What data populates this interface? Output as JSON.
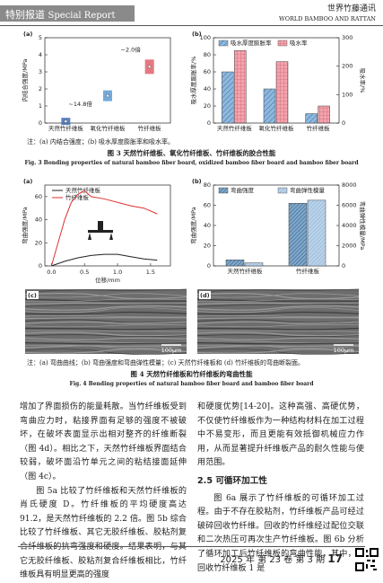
{
  "header": {
    "section": "特别报道",
    "section_en": "Special Report",
    "journal": "世界竹藤通讯",
    "journal_en": "WORLD BAMBOO AND RATTAN"
  },
  "fig3": {
    "a": {
      "label": "(a)",
      "type": "dot",
      "ylabel": "内结合强度/MPa",
      "categories": [
        "天然竹纤维板",
        "氧化竹纤维板",
        "竹纤维板"
      ],
      "values": [
        0.1,
        1.6,
        3.3
      ],
      "colors": [
        "#3f6fb5",
        "#5b9bd5",
        "#e0606a"
      ],
      "ylim": [
        0,
        5
      ],
      "yticks": [
        0,
        1,
        2,
        3,
        4,
        5
      ],
      "annotations": [
        "~14.8倍",
        "~2.0倍"
      ]
    },
    "b": {
      "label": "(b)",
      "type": "bar",
      "ylabel": "吸水厚度膨胀率/%",
      "y2label": "吸水率/%",
      "categories": [
        "天然竹纤维板",
        "氧化竹纤维板",
        "竹纤维板"
      ],
      "series": [
        {
          "name": "吸水厚度膨胀率",
          "color": "#8fb8de",
          "values": [
            60,
            40,
            11
          ]
        },
        {
          "name": "吸水率",
          "color": "#f3a3ad",
          "axis": "y2",
          "values": [
            255,
            216,
            60
          ]
        }
      ],
      "ylim": [
        0,
        100
      ],
      "yticks": [
        0,
        20,
        40,
        60,
        80,
        100
      ],
      "y2lim": [
        0,
        300
      ],
      "y2ticks": [
        0,
        100,
        200,
        300
      ]
    },
    "note": "注：(a) 内结合强度；(b) 吸水厚度膨胀率和吸水率。",
    "title": "图 3   天然竹纤维板、氧化竹纤维板、竹纤维板的胶合性能",
    "title_en": "Fig. 3   Bonding properties of natural bamboo fiber board, oxidized bamboo fiber board and bamboo fiber board"
  },
  "fig4": {
    "a": {
      "label": "(a)",
      "type": "line",
      "xlabel": "位移/mm",
      "ylabel": "弯曲强度/MPa",
      "series": [
        {
          "name": "天然竹纤维板",
          "color": "#222222",
          "x": [
            0,
            0.2,
            0.4,
            0.6,
            0.8,
            1.0,
            1.2,
            1.4,
            1.6
          ],
          "values": [
            0,
            4,
            7,
            9,
            10,
            10,
            8,
            6,
            5
          ]
        },
        {
          "name": "竹纤维板",
          "color": "#e03030",
          "x": [
            0,
            0.1,
            0.2,
            0.3,
            0.4,
            0.5,
            0.6,
            0.8,
            1.0,
            1.2,
            1.4,
            1.6
          ],
          "values": [
            0,
            20,
            40,
            55,
            62,
            65,
            60,
            58,
            55,
            52,
            50,
            45
          ]
        }
      ],
      "xlim": [
        -0.1,
        1.8
      ],
      "xticks": [
        {
          "value": 0,
          "label": "0.0"
        },
        0.5,
        {
          "value": 1,
          "label": "1.0"
        },
        1.5
      ],
      "ylim": [
        0,
        70
      ],
      "yticks": [
        0,
        20,
        40,
        60
      ]
    },
    "b": {
      "label": "(b)",
      "type": "bar",
      "ylabel": "弯曲强度/MPa",
      "y2label": "弯曲弹性模量/MPa",
      "categories": [
        "天然竹纤维板",
        "竹纤维板"
      ],
      "series": [
        {
          "name": "弯曲强度",
          "color": "#7fa7c9",
          "values": [
            6,
            62
          ]
        },
        {
          "name": "弯曲弹性模量",
          "color": "#b9d3ea",
          "axis": "y2",
          "values": [
            300,
            6500
          ]
        }
      ],
      "ylim": [
        0,
        80
      ],
      "yticks": [
        0,
        20,
        40,
        60,
        80
      ],
      "y2lim": [
        0,
        8000
      ],
      "y2ticks": [
        0,
        2000,
        4000,
        6000,
        8000
      ]
    },
    "c": {
      "label": "(c)",
      "scale": "100μm"
    },
    "d": {
      "label": "(d)",
      "scale": "100μm"
    },
    "note": "注：(a) 弯曲曲线；(b) 弯曲强度和弯曲弹性模量；(c) 天然竹纤维板和 (d) 竹纤维板的弯曲断裂面。",
    "title": "图 4   天然竹纤维板和竹纤维板的弯曲性能",
    "title_en": "Fig. 4   Bending properties of natural bamboo fiber board and bamboo fiber board"
  },
  "body": {
    "left": [
      "增加了界面损伤的能量耗散。当竹纤维板受到弯曲应力时，粘接界面有足够的强度不被破坏，在破坏表面显示出相对整齐的纤维断裂（图 4d）。相比之下，天然竹纤维板界面结合较弱，破坏面沿竹单元之间的粘结接面延伸（图 4c）。",
      "图 5a 比较了竹纤维板和天然竹纤维板的肖氏硬度 D。竹纤维板的平均硬度高达 91.2，是天然竹纤维板的 2.2 倍。图 5b 综合比较了竹纤维板、其它无胶纤维板、胶粘剂复合纤维板的抗弯强度和硬度。结果表明，与其它无胶纤维板、胶粘剂复合纤维板相比，竹纤维板具有明显更高的强度"
    ],
    "right": [
      "和硬度优势[14-20]。这种高强、高硬优势，不仅使竹纤维板作为一种结构材料在加工过程中不易变形，而且更能有效抵御机械应力作用，从而显著提升纤维板产品的耐久性能与使用范围。"
    ],
    "heading": "2.5   可循环加工性",
    "right2": [
      "图 6a 展示了竹纤维板的可循环加工过程。由于不存在胶粘剂，竹纤维板产品可经过破碎回收竹纤维。回收的竹纤维经过配位交联和二次热压可再次生产竹纤维板。图 6b 分析了循环加工后竹纤维板的弯曲性能，其中，再回收竹纤维板 1 是"
    ]
  },
  "footer": {
    "year": "2025 年",
    "volume": "第 23 卷",
    "issue": "第 3 期",
    "page": 17
  }
}
